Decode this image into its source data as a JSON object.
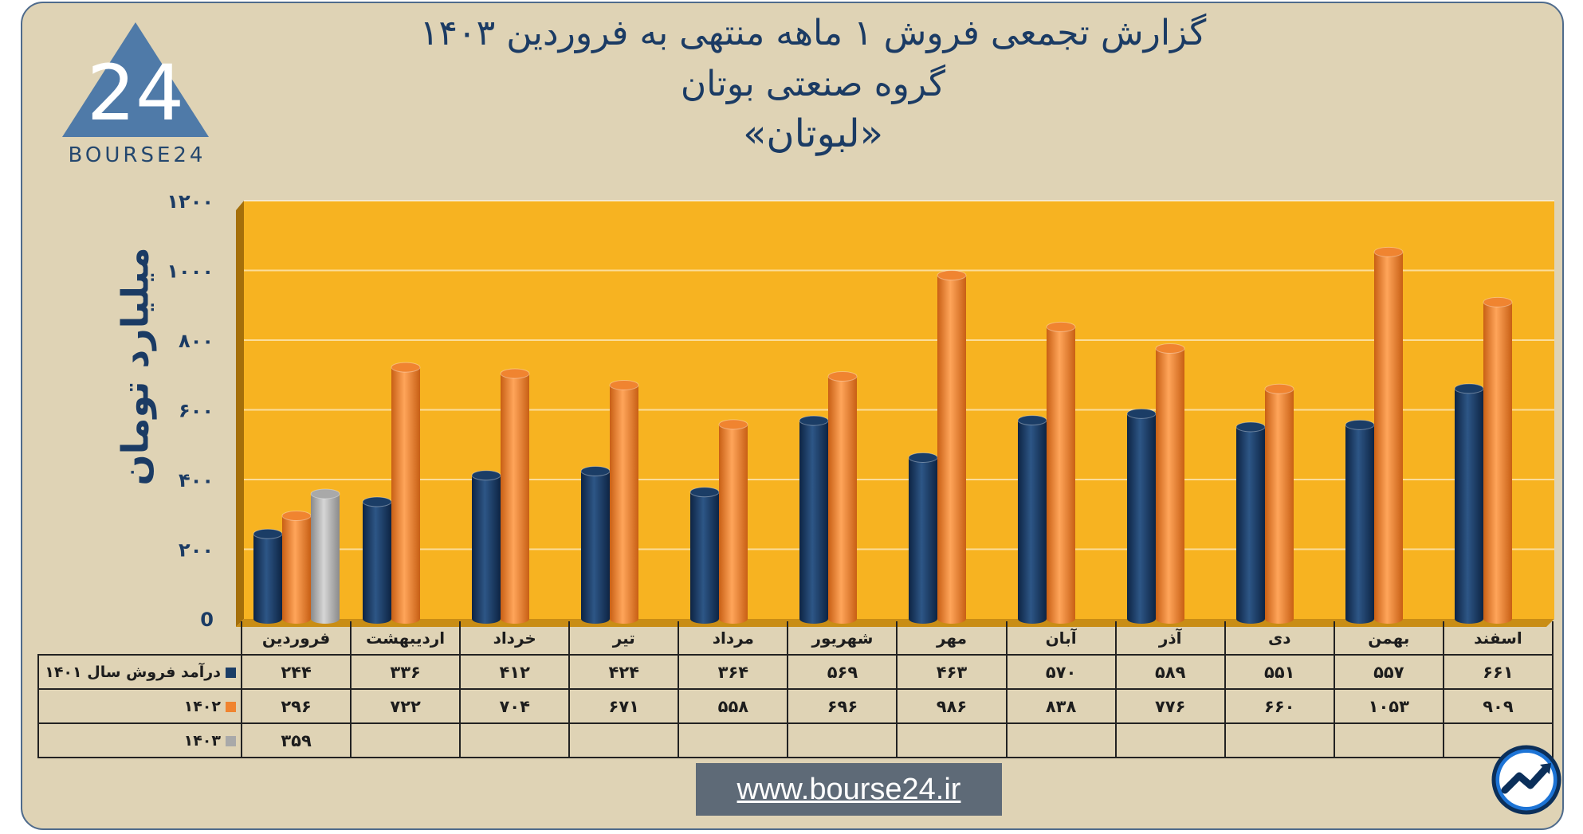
{
  "brand": {
    "logo_text": "BOURSE24",
    "logo_number": "24",
    "url": "www.bourse24.ir"
  },
  "title": {
    "line1": "گزارش تجمعی فروش ۱ ماهه منتهی به فروردین ۱۴۰۳",
    "line2": "گروه صنعتی بوتان",
    "line3": "«لبوتان»"
  },
  "colors": {
    "plot_bg": "#f7b321",
    "series_1401": "#1b3d66",
    "series_1402": "#f08430",
    "series_1403": "#a9a9a9",
    "frame_bg": "#dfd3b5"
  },
  "table": {
    "legend_labels": [
      "درآمد فروش سال ۱۴۰۱",
      "۱۴۰۲",
      "۱۴۰۳"
    ]
  },
  "chart_data": {
    "type": "bar",
    "ylabel": "میلیارد تومان",
    "ylim": [
      0,
      1200
    ],
    "yticks": [
      0,
      200,
      400,
      600,
      800,
      1000,
      1200
    ],
    "ytick_labels": [
      "0",
      "۲۰۰",
      "۴۰۰",
      "۶۰۰",
      "۸۰۰",
      "۱۰۰۰",
      "۱۲۰۰"
    ],
    "grid": true,
    "categories": [
      "فروردین",
      "اردیبهشت",
      "خرداد",
      "تیر",
      "مرداد",
      "شهریور",
      "مهر",
      "آبان",
      "آذر",
      "دی",
      "بهمن",
      "اسفند"
    ],
    "series": [
      {
        "name": "درآمد فروش سال ۱۴۰۱",
        "color": "#1b3d66",
        "values": [
          244,
          336,
          412,
          424,
          364,
          569,
          463,
          570,
          589,
          551,
          557,
          661
        ],
        "labels": [
          "۲۴۴",
          "۳۳۶",
          "۴۱۲",
          "۴۲۴",
          "۳۶۴",
          "۵۶۹",
          "۴۶۳",
          "۵۷۰",
          "۵۸۹",
          "۵۵۱",
          "۵۵۷",
          "۶۶۱"
        ]
      },
      {
        "name": "۱۴۰۲",
        "color": "#f08430",
        "values": [
          296,
          722,
          704,
          671,
          558,
          696,
          986,
          838,
          776,
          660,
          1053,
          909
        ],
        "labels": [
          "۲۹۶",
          "۷۲۲",
          "۷۰۴",
          "۶۷۱",
          "۵۵۸",
          "۶۹۶",
          "۹۸۶",
          "۸۳۸",
          "۷۷۶",
          "۶۶۰",
          "۱۰۵۳",
          "۹۰۹"
        ]
      },
      {
        "name": "۱۴۰۳",
        "color": "#a9a9a9",
        "values": [
          359,
          null,
          null,
          null,
          null,
          null,
          null,
          null,
          null,
          null,
          null,
          null
        ],
        "labels": [
          "۳۵۹",
          "",
          "",
          "",
          "",
          "",
          "",
          "",
          "",
          "",
          "",
          ""
        ]
      }
    ]
  }
}
